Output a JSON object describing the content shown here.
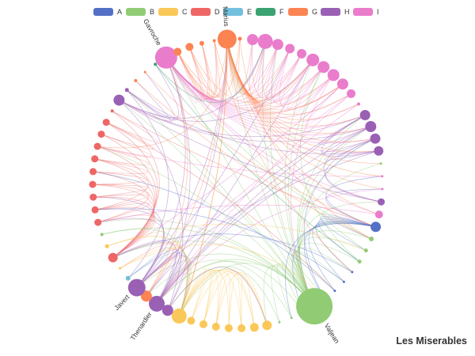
{
  "title": "Les Miserables",
  "legend": [
    {
      "name": "A",
      "color": "#5470c6"
    },
    {
      "name": "B",
      "color": "#91cc75"
    },
    {
      "name": "C",
      "color": "#fac858"
    },
    {
      "name": "D",
      "color": "#ee6666"
    },
    {
      "name": "E",
      "color": "#73c0de"
    },
    {
      "name": "F",
      "color": "#3ba272"
    },
    {
      "name": "G",
      "color": "#fc8452"
    },
    {
      "name": "H",
      "color": "#9a60b4"
    },
    {
      "name": "I",
      "color": "#ea7ccc"
    }
  ],
  "labels": {
    "marius": "Marius",
    "gavroche": "Gavroche",
    "valjean": "Valjean",
    "javert": "Javert",
    "thenardier": "Thenardier"
  },
  "nodes": [
    {
      "cat": "I",
      "size": 14,
      "label": null
    },
    {
      "cat": "I",
      "size": 19,
      "label": null
    },
    {
      "cat": "I",
      "size": 14,
      "label": null
    },
    {
      "cat": "I",
      "size": 12,
      "label": null
    },
    {
      "cat": "I",
      "size": 12,
      "label": null
    },
    {
      "cat": "I",
      "size": 16,
      "label": null
    },
    {
      "cat": "I",
      "size": 15,
      "label": null
    },
    {
      "cat": "I",
      "size": 15,
      "label": null
    },
    {
      "cat": "I",
      "size": 14,
      "label": null
    },
    {
      "cat": "I",
      "size": 11,
      "label": null
    },
    {
      "cat": "I",
      "size": 4,
      "label": null
    },
    {
      "cat": "H",
      "size": 13,
      "label": null
    },
    {
      "cat": "H",
      "size": 14,
      "label": null
    },
    {
      "cat": "H",
      "size": 13,
      "label": null
    },
    {
      "cat": "H",
      "size": 12,
      "label": null
    },
    {
      "cat": "B",
      "size": 3,
      "label": null
    },
    {
      "cat": "I",
      "size": 3,
      "label": null
    },
    {
      "cat": "I",
      "size": 3,
      "label": null
    },
    {
      "cat": "H",
      "size": 9,
      "label": null
    },
    {
      "cat": "I",
      "size": 10,
      "label": null
    },
    {
      "cat": "A",
      "size": 13,
      "label": null
    },
    {
      "cat": "B",
      "size": 6,
      "label": null
    },
    {
      "cat": "B",
      "size": 5,
      "label": null
    },
    {
      "cat": "B",
      "size": 5,
      "label": null
    },
    {
      "cat": "A",
      "size": 3,
      "label": null
    },
    {
      "cat": "A",
      "size": 3,
      "label": null
    },
    {
      "cat": "A",
      "size": 3,
      "label": null
    },
    {
      "cat": "A",
      "size": 3,
      "label": null
    },
    {
      "cat": "B",
      "size": 46,
      "label": "valjean"
    },
    {
      "cat": "B",
      "size": 3,
      "label": null
    },
    {
      "cat": "B",
      "size": 3,
      "label": null
    },
    {
      "cat": "B",
      "size": 3,
      "label": null
    },
    {
      "cat": "C",
      "size": 12,
      "label": null
    },
    {
      "cat": "C",
      "size": 11,
      "label": null
    },
    {
      "cat": "C",
      "size": 10,
      "label": null
    },
    {
      "cat": "C",
      "size": 10,
      "label": null
    },
    {
      "cat": "C",
      "size": 10,
      "label": null
    },
    {
      "cat": "C",
      "size": 10,
      "label": null
    },
    {
      "cat": "C",
      "size": 10,
      "label": null
    },
    {
      "cat": "C",
      "size": 19,
      "label": null
    },
    {
      "cat": "H",
      "size": 14,
      "label": null
    },
    {
      "cat": "H",
      "size": 20,
      "label": "thenardier"
    },
    {
      "cat": "G",
      "size": 14,
      "label": null
    },
    {
      "cat": "H",
      "size": 22,
      "label": "javert"
    },
    {
      "cat": "E",
      "size": 6,
      "label": null
    },
    {
      "cat": "C",
      "size": 3,
      "label": null
    },
    {
      "cat": "D",
      "size": 12,
      "label": null
    },
    {
      "cat": "C",
      "size": 5,
      "label": null
    },
    {
      "cat": "B",
      "size": 4,
      "label": null
    },
    {
      "cat": "D",
      "size": 9,
      "label": null
    },
    {
      "cat": "D",
      "size": 9,
      "label": null
    },
    {
      "cat": "D",
      "size": 9,
      "label": null
    },
    {
      "cat": "D",
      "size": 9,
      "label": null
    },
    {
      "cat": "D",
      "size": 9,
      "label": null
    },
    {
      "cat": "D",
      "size": 9,
      "label": null
    },
    {
      "cat": "D",
      "size": 9,
      "label": null
    },
    {
      "cat": "D",
      "size": 9,
      "label": null
    },
    {
      "cat": "D",
      "size": 9,
      "label": null
    },
    {
      "cat": "D",
      "size": 4,
      "label": null
    },
    {
      "cat": "H",
      "size": 14,
      "label": null
    },
    {
      "cat": "H",
      "size": 5,
      "label": null
    },
    {
      "cat": "G",
      "size": 4,
      "label": null
    },
    {
      "cat": "G",
      "size": 3,
      "label": null
    },
    {
      "cat": "F",
      "size": 4,
      "label": null
    },
    {
      "cat": "I",
      "size": 28,
      "label": "gavroche"
    },
    {
      "cat": "G",
      "size": 10,
      "label": null
    },
    {
      "cat": "G",
      "size": 10,
      "label": null
    },
    {
      "cat": "G",
      "size": 6,
      "label": null
    },
    {
      "cat": "G",
      "size": 4,
      "label": null
    },
    {
      "cat": "G",
      "size": 24,
      "label": "marius"
    },
    {
      "cat": "G",
      "size": 5,
      "label": null
    }
  ],
  "edges": [
    [
      28,
      20
    ],
    [
      28,
      21
    ],
    [
      28,
      22
    ],
    [
      28,
      23
    ],
    [
      28,
      24
    ],
    [
      28,
      25
    ],
    [
      28,
      26
    ],
    [
      28,
      27
    ],
    [
      28,
      29
    ],
    [
      28,
      30
    ],
    [
      28,
      31
    ],
    [
      28,
      32
    ],
    [
      28,
      39
    ],
    [
      28,
      41
    ],
    [
      28,
      43
    ],
    [
      28,
      64
    ],
    [
      28,
      69
    ],
    [
      28,
      1
    ],
    [
      28,
      5
    ],
    [
      28,
      11
    ],
    [
      28,
      12
    ],
    [
      28,
      46
    ],
    [
      28,
      49
    ],
    [
      28,
      55
    ],
    [
      28,
      59
    ],
    [
      28,
      60
    ],
    [
      28,
      13
    ],
    [
      28,
      18
    ],
    [
      28,
      6
    ],
    [
      28,
      2
    ],
    [
      20,
      21
    ],
    [
      20,
      22
    ],
    [
      20,
      23
    ],
    [
      20,
      24
    ],
    [
      20,
      25
    ],
    [
      20,
      26
    ],
    [
      20,
      27
    ],
    [
      20,
      29
    ],
    [
      20,
      30
    ],
    [
      20,
      16
    ],
    [
      20,
      17
    ],
    [
      39,
      32
    ],
    [
      39,
      33
    ],
    [
      39,
      34
    ],
    [
      39,
      35
    ],
    [
      39,
      36
    ],
    [
      39,
      37
    ],
    [
      39,
      38
    ],
    [
      39,
      45
    ],
    [
      39,
      47
    ],
    [
      39,
      41
    ],
    [
      39,
      43
    ],
    [
      39,
      69
    ],
    [
      33,
      34
    ],
    [
      34,
      35
    ],
    [
      35,
      36
    ],
    [
      36,
      37
    ],
    [
      37,
      38
    ],
    [
      32,
      38
    ],
    [
      33,
      37
    ],
    [
      32,
      36
    ],
    [
      41,
      43
    ],
    [
      41,
      40
    ],
    [
      41,
      42
    ],
    [
      41,
      64
    ],
    [
      41,
      44
    ],
    [
      41,
      46
    ],
    [
      41,
      11
    ],
    [
      41,
      12
    ],
    [
      41,
      13
    ],
    [
      41,
      69
    ],
    [
      41,
      5
    ],
    [
      43,
      64
    ],
    [
      43,
      69
    ],
    [
      43,
      49
    ],
    [
      43,
      50
    ],
    [
      43,
      51
    ],
    [
      43,
      11
    ],
    [
      43,
      14
    ],
    [
      43,
      3
    ],
    [
      43,
      42
    ],
    [
      64,
      1
    ],
    [
      64,
      2
    ],
    [
      64,
      3
    ],
    [
      64,
      4
    ],
    [
      64,
      5
    ],
    [
      64,
      6
    ],
    [
      64,
      7
    ],
    [
      64,
      8
    ],
    [
      64,
      9
    ],
    [
      64,
      10
    ],
    [
      64,
      11
    ],
    [
      64,
      12
    ],
    [
      64,
      13
    ],
    [
      64,
      14
    ],
    [
      64,
      18
    ],
    [
      64,
      19
    ],
    [
      64,
      69
    ],
    [
      64,
      65
    ],
    [
      64,
      66
    ],
    [
      64,
      67
    ],
    [
      64,
      68
    ],
    [
      64,
      59
    ],
    [
      69,
      0
    ],
    [
      69,
      1
    ],
    [
      69,
      2
    ],
    [
      69,
      3
    ],
    [
      69,
      4
    ],
    [
      69,
      5
    ],
    [
      69,
      6
    ],
    [
      69,
      7
    ],
    [
      69,
      8
    ],
    [
      69,
      9
    ],
    [
      69,
      10
    ],
    [
      69,
      11
    ],
    [
      69,
      12
    ],
    [
      69,
      13
    ],
    [
      69,
      14
    ],
    [
      69,
      15
    ],
    [
      69,
      16
    ],
    [
      69,
      17
    ],
    [
      69,
      19
    ],
    [
      69,
      65
    ],
    [
      69,
      66
    ],
    [
      69,
      70
    ],
    [
      69,
      39
    ],
    [
      69,
      55
    ],
    [
      0,
      1
    ],
    [
      1,
      2
    ],
    [
      2,
      3
    ],
    [
      3,
      4
    ],
    [
      4,
      5
    ],
    [
      5,
      6
    ],
    [
      6,
      7
    ],
    [
      7,
      8
    ],
    [
      8,
      9
    ],
    [
      1,
      5
    ],
    [
      2,
      6
    ],
    [
      3,
      7
    ],
    [
      0,
      4
    ],
    [
      11,
      12
    ],
    [
      12,
      13
    ],
    [
      13,
      14
    ],
    [
      11,
      14
    ],
    [
      12,
      18
    ],
    [
      13,
      18
    ],
    [
      46,
      49
    ],
    [
      46,
      50
    ],
    [
      46,
      51
    ],
    [
      46,
      52
    ],
    [
      46,
      53
    ],
    [
      46,
      54
    ],
    [
      46,
      55
    ],
    [
      46,
      56
    ],
    [
      46,
      57
    ],
    [
      46,
      58
    ],
    [
      46,
      39
    ],
    [
      49,
      50
    ],
    [
      50,
      51
    ],
    [
      51,
      52
    ],
    [
      52,
      53
    ],
    [
      53,
      54
    ],
    [
      54,
      55
    ],
    [
      55,
      56
    ],
    [
      56,
      57
    ],
    [
      57,
      58
    ],
    [
      49,
      52
    ],
    [
      50,
      54
    ],
    [
      59,
      11
    ],
    [
      59,
      12
    ],
    [
      59,
      5
    ],
    [
      59,
      1
    ],
    [
      59,
      18
    ],
    [
      59,
      40
    ],
    [
      60,
      61
    ],
    [
      60,
      62
    ],
    [
      60,
      63
    ],
    [
      60,
      44
    ],
    [
      60,
      14
    ],
    [
      65,
      66
    ],
    [
      65,
      67
    ],
    [
      65,
      68
    ],
    [
      65,
      70
    ],
    [
      66,
      67
    ],
    [
      67,
      68
    ],
    [
      66,
      5
    ],
    [
      65,
      8
    ],
    [
      42,
      69
    ],
    [
      42,
      64
    ],
    [
      42,
      45
    ],
    [
      44,
      43
    ],
    [
      44,
      39
    ],
    [
      47,
      39
    ],
    [
      48,
      28
    ],
    [
      48,
      39
    ],
    [
      15,
      28
    ],
    [
      31,
      40
    ],
    [
      30,
      42
    ],
    [
      21,
      64
    ],
    [
      22,
      69
    ],
    [
      23,
      6
    ],
    [
      29,
      41
    ],
    [
      40,
      32
    ],
    [
      40,
      43
    ],
    [
      62,
      20
    ],
    [
      61,
      21
    ],
    [
      63,
      23
    ],
    [
      63,
      1
    ],
    [
      58,
      20
    ],
    [
      57,
      26
    ],
    [
      47,
      22
    ],
    [
      45,
      27
    ],
    [
      70,
      21
    ],
    [
      68,
      24
    ],
    [
      10,
      43
    ],
    [
      9,
      41
    ],
    [
      7,
      28
    ],
    [
      8,
      46
    ],
    [
      19,
      49
    ],
    [
      16,
      55
    ],
    [
      17,
      41
    ],
    [
      24,
      46
    ],
    [
      25,
      50
    ],
    [
      26,
      53
    ],
    [
      27,
      13
    ]
  ]
}
